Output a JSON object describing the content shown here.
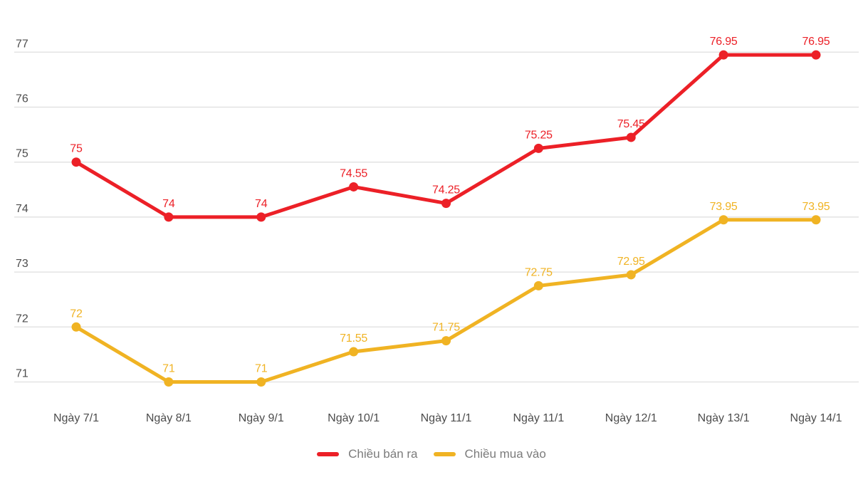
{
  "chart_data": {
    "type": "line",
    "categories": [
      "Ngày 7/1",
      "Ngày 8/1",
      "Ngày 9/1",
      "Ngày 10/1",
      "Ngày 11/1",
      "Ngày 11/1",
      "Ngày 12/1",
      "Ngày 13/1",
      "Ngày 14/1"
    ],
    "series": [
      {
        "name": "Chiều bán ra",
        "color": "#ec2027",
        "values": [
          75,
          74,
          74,
          74.55,
          74.25,
          75.25,
          75.45,
          76.95,
          76.95
        ]
      },
      {
        "name": "Chiều mua vào",
        "color": "#f0b323",
        "values": [
          72,
          71,
          71,
          71.55,
          71.75,
          72.75,
          72.95,
          73.95,
          73.95
        ]
      }
    ],
    "title": "",
    "xlabel": "",
    "ylabel": "",
    "ylim": [
      71,
      77
    ],
    "yticks": [
      71,
      72,
      73,
      74,
      75,
      76,
      77
    ],
    "grid": true,
    "legend_position": "bottom",
    "point_labels_visible": true
  },
  "colors": {
    "background": "#ffffff",
    "grid": "#e3e3e3",
    "axis_text": "#4c4c4c",
    "legend_text": "#7b7b7b"
  }
}
